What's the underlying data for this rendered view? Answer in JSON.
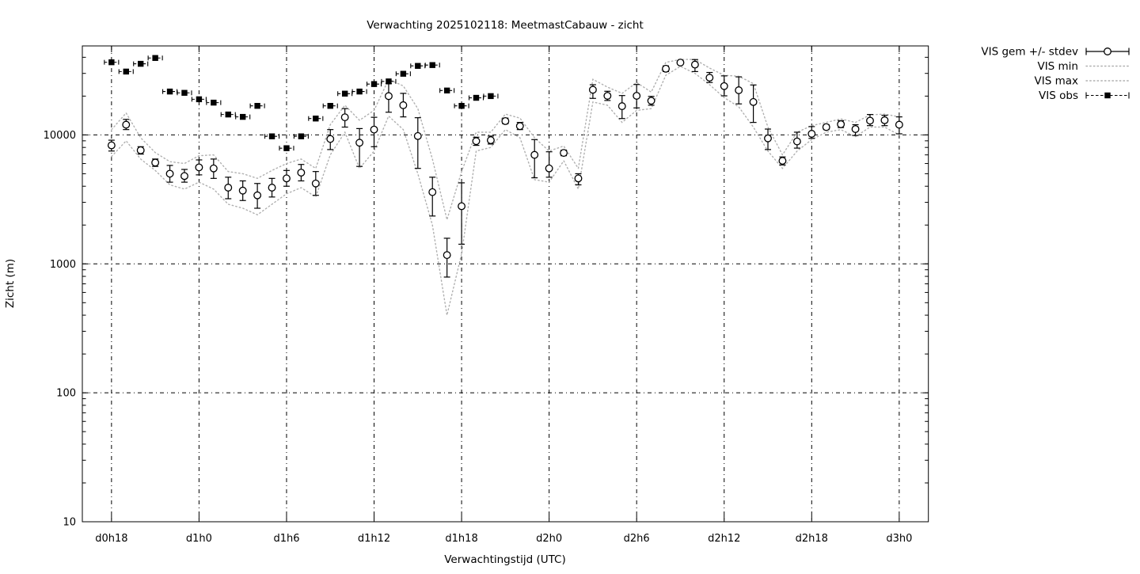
{
  "title": "Verwachting 2025102118: MeetmastCabauw - zicht",
  "x_axis": {
    "label": "Verwachtingstijd (UTC)",
    "tick_labels": [
      "d0h18",
      "d1h0",
      "d1h6",
      "d1h12",
      "d1h18",
      "d2h0",
      "d2h6",
      "d2h12",
      "d2h18",
      "d3h0"
    ],
    "tick_hours": [
      0,
      6,
      12,
      18,
      24,
      30,
      36,
      42,
      48,
      54
    ],
    "domain_hours": [
      -2,
      56
    ]
  },
  "y_axis": {
    "label": "Zicht (m)",
    "scale": "log",
    "tick_values": [
      10,
      100,
      1000,
      10000
    ],
    "tick_labels": [
      "10",
      "100",
      "1000",
      "10000"
    ],
    "minor_tick_values": [
      20,
      30,
      40,
      50,
      60,
      70,
      80,
      90,
      200,
      300,
      400,
      500,
      600,
      700,
      800,
      900,
      2000,
      3000,
      4000,
      5000,
      6000,
      7000,
      8000,
      9000,
      20000,
      30000,
      40000
    ],
    "domain": [
      10,
      49000
    ]
  },
  "legend": {
    "items": [
      {
        "label": "VIS gem +/- stdev",
        "type": "errorbar-circle"
      },
      {
        "label": "VIS min",
        "type": "dotted-line"
      },
      {
        "label": "VIS max",
        "type": "dotted-line"
      },
      {
        "label": "VIS obs",
        "type": "errorbar-square"
      }
    ]
  },
  "colors": {
    "foreground": "#000000",
    "envelope": "#b0b0b0",
    "background": "#ffffff"
  },
  "chart_data": {
    "type": "line",
    "x_hours": [
      0,
      1,
      2,
      3,
      4,
      5,
      6,
      7,
      8,
      9,
      10,
      11,
      12,
      13,
      14,
      15,
      16,
      17,
      18,
      19,
      20,
      21,
      22,
      23,
      24,
      25,
      26,
      27,
      28,
      29,
      30,
      31,
      32,
      33,
      34,
      35,
      36,
      37,
      38,
      39,
      40,
      41,
      42,
      43,
      44,
      45,
      46,
      47,
      48,
      49,
      50,
      51,
      52,
      53,
      54
    ],
    "series": [
      {
        "name": "VIS gem",
        "type": "errorbar-circle",
        "values": [
          8300,
          12000,
          7600,
          6100,
          5000,
          4800,
          5600,
          5500,
          3900,
          3700,
          3400,
          3900,
          4600,
          5100,
          4200,
          9300,
          13700,
          8700,
          11000,
          20000,
          17000,
          9800,
          3600,
          1170,
          2800,
          8950,
          9100,
          12800,
          11700,
          7000,
          5500,
          7250,
          4600,
          22400,
          20100,
          16700,
          20100,
          18400,
          32600,
          36400,
          35100,
          27800,
          23900,
          22200,
          18000,
          9400,
          6300,
          8900,
          10200,
          11500,
          12100,
          11100,
          12900,
          13000,
          12000
        ],
        "stdev_low": [
          7500,
          11000,
          7100,
          5700,
          4300,
          4300,
          4900,
          4600,
          3200,
          3100,
          2700,
          3300,
          4000,
          4400,
          3400,
          7700,
          11500,
          5700,
          8100,
          15000,
          13800,
          5500,
          2350,
          790,
          1420,
          8300,
          8500,
          12200,
          11000,
          4650,
          4700,
          6900,
          4100,
          19200,
          18500,
          13400,
          16200,
          17000,
          31000,
          35500,
          31000,
          25500,
          20100,
          17400,
          12500,
          7700,
          5850,
          7900,
          9400,
          11000,
          11400,
          9900,
          11800,
          11800,
          10200
        ],
        "stdev_high": [
          9100,
          13200,
          8100,
          6500,
          5800,
          5400,
          6400,
          6500,
          4700,
          4400,
          4200,
          4600,
          5300,
          5900,
          5200,
          11000,
          16000,
          11200,
          13700,
          25000,
          21000,
          13600,
          4700,
          1580,
          4250,
          9600,
          9800,
          13500,
          12500,
          9200,
          7400,
          7600,
          5000,
          24500,
          21800,
          20200,
          24600,
          19900,
          34300,
          37400,
          38400,
          30500,
          28700,
          28200,
          24400,
          11100,
          6750,
          10500,
          11600,
          12000,
          12900,
          12000,
          14400,
          14200,
          13800
        ]
      },
      {
        "name": "VIS min",
        "type": "dotted-line",
        "values": [
          6800,
          9000,
          6500,
          5300,
          4100,
          3800,
          4300,
          3800,
          2900,
          2700,
          2400,
          2900,
          3500,
          3900,
          3300,
          7000,
          10500,
          5500,
          7500,
          14000,
          11000,
          5000,
          2000,
          400,
          1200,
          7500,
          8000,
          11000,
          9500,
          4500,
          4300,
          6300,
          3800,
          18000,
          17000,
          12500,
          15500,
          16000,
          29000,
          34000,
          30000,
          24500,
          19500,
          16500,
          11500,
          7500,
          5500,
          7500,
          9200,
          10500,
          11000,
          9700,
          11500,
          11500,
          10000
        ]
      },
      {
        "name": "VIS max",
        "type": "dotted-line",
        "values": [
          11000,
          14800,
          9500,
          7300,
          6200,
          6000,
          6900,
          7000,
          5200,
          5000,
          4600,
          5300,
          6000,
          6500,
          5500,
          12000,
          17000,
          13000,
          15500,
          27000,
          24000,
          16000,
          6500,
          2200,
          5200,
          10500,
          10500,
          14500,
          13500,
          9500,
          7500,
          8200,
          5500,
          27000,
          23500,
          21000,
          25500,
          21500,
          36500,
          38500,
          38500,
          33000,
          29000,
          28500,
          25000,
          11500,
          7000,
          10500,
          11800,
          12500,
          13300,
          12500,
          14300,
          14500,
          13800
        ]
      },
      {
        "name": "VIS obs",
        "type": "errorbar-square",
        "hours": [
          0,
          1,
          2,
          3,
          4,
          5,
          6,
          7,
          8,
          9,
          10,
          11,
          12,
          13,
          14,
          15,
          16,
          17,
          18,
          19,
          20,
          21,
          22,
          23,
          24,
          25,
          26
        ],
        "values": [
          36600,
          31000,
          35600,
          39500,
          21700,
          21200,
          18900,
          17800,
          14400,
          13800,
          16800,
          9750,
          7890,
          9750,
          13400,
          16800,
          20900,
          21700,
          24800,
          26000,
          29800,
          34300,
          34800,
          22100,
          16800,
          19400,
          20000
        ]
      }
    ]
  }
}
